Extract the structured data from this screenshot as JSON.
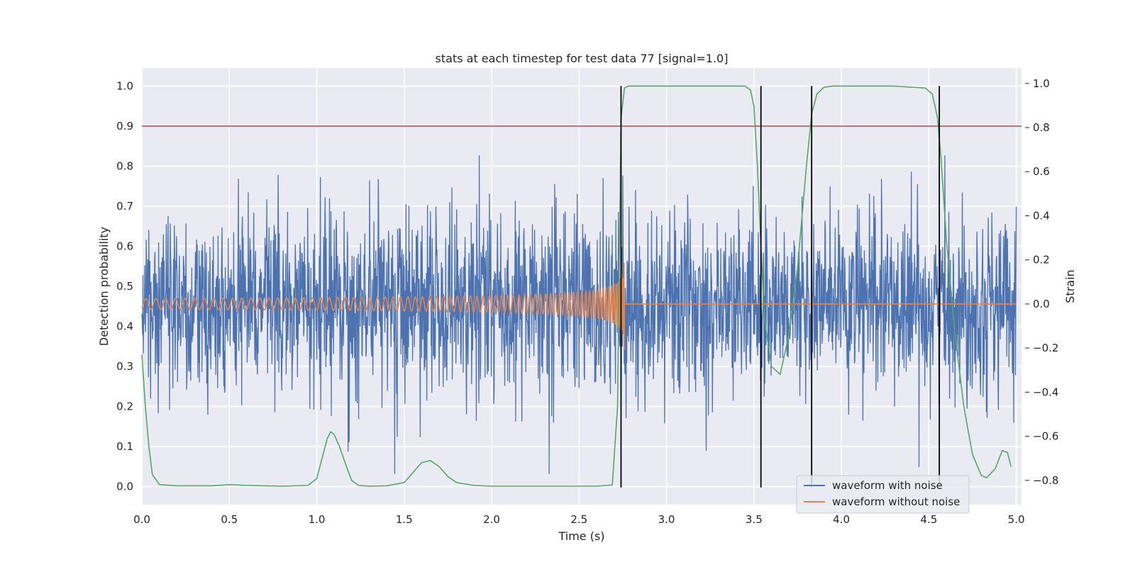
{
  "chart_data": {
    "type": "line",
    "title": "stats at each timestep for test data 77 [signal=1.0]",
    "xlabel": "Time (s)",
    "ylabel_left": "Detection probability",
    "ylabel_right": "Strain",
    "xlim": [
      0.0,
      5.03
    ],
    "ylim_left": [
      -0.045,
      1.045
    ],
    "ylim_right": [
      -0.91,
      1.07
    ],
    "x_ticks": [
      0.0,
      0.5,
      1.0,
      1.5,
      2.0,
      2.5,
      3.0,
      3.5,
      4.0,
      4.5,
      5.0
    ],
    "x_tick_labels": [
      "0.0",
      "0.5",
      "1.0",
      "1.5",
      "2.0",
      "2.5",
      "3.0",
      "3.5",
      "4.0",
      "4.5",
      "5.0"
    ],
    "y_left_ticks": [
      0.0,
      0.1,
      0.2,
      0.3,
      0.4,
      0.5,
      0.6,
      0.7,
      0.8,
      0.9,
      1.0
    ],
    "y_left_tick_labels": [
      "0.0",
      "0.1",
      "0.2",
      "0.3",
      "0.4",
      "0.5",
      "0.6",
      "0.7",
      "0.8",
      "0.9",
      "1.0"
    ],
    "y_right_ticks": [
      -0.8,
      -0.6,
      -0.4,
      -0.2,
      0.0,
      0.2,
      0.4,
      0.6,
      0.8,
      1.0
    ],
    "y_right_tick_labels": [
      "−0.8",
      "−0.6",
      "−0.4",
      "−0.2",
      "0.0",
      "0.2",
      "0.4",
      "0.6",
      "0.8",
      "1.0"
    ],
    "grid": true,
    "legend_position": "bottom-right",
    "threshold": 0.9,
    "detection_markers_x": [
      2.74,
      3.54,
      3.83,
      4.56
    ],
    "noise_amplitude_strain": 0.42,
    "merger_time": 2.76,
    "series": [
      {
        "name": "waveform with noise",
        "axis": "right",
        "color": "#4c72b0"
      },
      {
        "name": "waveform without noise",
        "axis": "right",
        "color": "#dd8452"
      },
      {
        "axis": "left",
        "color": "#55a868",
        "x": [
          0.0,
          0.02,
          0.04,
          0.06,
          0.1,
          0.2,
          0.4,
          0.5,
          0.6,
          0.8,
          0.95,
          1.0,
          1.03,
          1.06,
          1.08,
          1.1,
          1.13,
          1.17,
          1.2,
          1.24,
          1.3,
          1.4,
          1.5,
          1.55,
          1.6,
          1.65,
          1.7,
          1.75,
          1.8,
          1.9,
          2.0,
          2.3,
          2.6,
          2.69,
          2.72,
          2.74,
          2.76,
          2.78,
          2.8,
          3.0,
          3.3,
          3.45,
          3.48,
          3.5,
          3.52,
          3.54,
          3.56,
          3.6,
          3.65,
          3.7,
          3.75,
          3.8,
          3.83,
          3.86,
          3.9,
          3.95,
          4.0,
          4.3,
          4.48,
          4.52,
          4.55,
          4.57,
          4.6,
          4.65,
          4.7,
          4.75,
          4.8,
          4.83,
          4.88,
          4.92,
          4.95,
          4.97
        ],
        "values": [
          0.33,
          0.2,
          0.1,
          0.03,
          0.005,
          0.002,
          0.002,
          0.005,
          0.003,
          0.001,
          0.003,
          0.02,
          0.07,
          0.12,
          0.137,
          0.13,
          0.1,
          0.05,
          0.015,
          0.003,
          0.001,
          0.002,
          0.01,
          0.035,
          0.06,
          0.065,
          0.05,
          0.025,
          0.01,
          0.003,
          0.001,
          0.001,
          0.001,
          0.004,
          0.2,
          0.92,
          0.995,
          1.0,
          1.0,
          1.0,
          1.0,
          1.0,
          0.99,
          0.95,
          0.8,
          0.6,
          0.42,
          0.3,
          0.28,
          0.38,
          0.55,
          0.8,
          0.93,
          0.98,
          0.997,
          1.0,
          1.0,
          1.0,
          0.995,
          0.98,
          0.92,
          0.82,
          0.62,
          0.38,
          0.2,
          0.08,
          0.028,
          0.022,
          0.045,
          0.09,
          0.085,
          0.05
        ]
      }
    ]
  }
}
